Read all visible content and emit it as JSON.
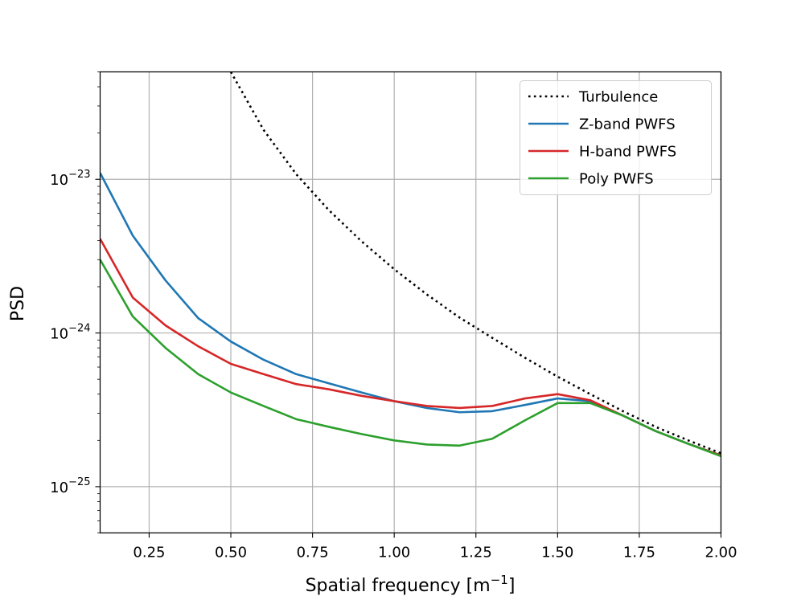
{
  "chart_data": {
    "type": "line",
    "title": "",
    "xlabel": "Spatial frequency [m",
    "xlabel_sup": "−1",
    "xlabel_end": "]",
    "ylabel": "PSD",
    "xscale": "linear",
    "yscale": "log",
    "xlim": [
      0.1,
      2.0
    ],
    "ylim": [
      5e-26,
      5e-23
    ],
    "grid": true,
    "legend_loc": "upper right",
    "xticks": [
      0.25,
      0.5,
      0.75,
      1.0,
      1.25,
      1.5,
      1.75,
      2.0
    ],
    "xtick_labels": [
      "0.25",
      "0.50",
      "0.75",
      "1.00",
      "1.25",
      "1.50",
      "1.75",
      "2.00"
    ],
    "yticks": [
      1e-25,
      1e-24,
      1e-23
    ],
    "ytick_labels": [
      {
        "base": "10",
        "exp": "−25"
      },
      {
        "base": "10",
        "exp": "−24"
      },
      {
        "base": "10",
        "exp": "−23"
      }
    ],
    "series": [
      {
        "name": "Turbulence",
        "color": "#000000",
        "style": "dotted",
        "x": [
          0.5,
          0.6,
          0.7,
          0.8,
          0.9,
          1.0,
          1.1,
          1.2,
          1.3,
          1.4,
          1.5,
          1.6,
          1.7,
          1.8,
          1.9,
          2.0
        ],
        "y": [
          5e-23,
          2.1e-23,
          1.08e-23,
          6.3e-24,
          3.95e-24,
          2.6e-24,
          1.78e-24,
          1.26e-24,
          9.3e-25,
          6.9e-25,
          5.2e-25,
          4e-25,
          3.1e-25,
          2.45e-25,
          2e-25,
          1.65e-25
        ]
      },
      {
        "name": "Z-band PWFS",
        "color": "#1f77b4",
        "style": "solid",
        "x": [
          0.1,
          0.2,
          0.3,
          0.4,
          0.5,
          0.6,
          0.7,
          0.8,
          0.9,
          1.0,
          1.1,
          1.2,
          1.3,
          1.4,
          1.5,
          1.6,
          1.7,
          1.8,
          1.9,
          2.0
        ],
        "y": [
          1.1e-23,
          4.3e-24,
          2.2e-24,
          1.25e-24,
          8.8e-25,
          6.7e-25,
          5.4e-25,
          4.7e-25,
          4.1e-25,
          3.6e-25,
          3.25e-25,
          3.05e-25,
          3.1e-25,
          3.4e-25,
          3.75e-25,
          3.6e-25,
          2.9e-25,
          2.3e-25,
          1.9e-25,
          1.6e-25
        ]
      },
      {
        "name": "H-band PWFS",
        "color": "#d62728",
        "style": "solid",
        "x": [
          0.1,
          0.2,
          0.3,
          0.4,
          0.5,
          0.6,
          0.7,
          0.8,
          0.9,
          1.0,
          1.1,
          1.2,
          1.3,
          1.4,
          1.5,
          1.6,
          1.7,
          1.8,
          1.9,
          2.0
        ],
        "y": [
          4.1e-24,
          1.7e-24,
          1.12e-24,
          8.2e-25,
          6.3e-25,
          5.4e-25,
          4.65e-25,
          4.3e-25,
          3.9e-25,
          3.6e-25,
          3.35e-25,
          3.25e-25,
          3.35e-25,
          3.75e-25,
          4e-25,
          3.65e-25,
          2.9e-25,
          2.3e-25,
          1.9e-25,
          1.6e-25
        ]
      },
      {
        "name": "Poly PWFS",
        "color": "#2ca02c",
        "style": "solid",
        "x": [
          0.1,
          0.2,
          0.3,
          0.4,
          0.5,
          0.6,
          0.7,
          0.8,
          0.9,
          1.0,
          1.1,
          1.2,
          1.3,
          1.4,
          1.5,
          1.6,
          1.7,
          1.8,
          1.9,
          2.0
        ],
        "y": [
          3e-24,
          1.28e-24,
          8e-25,
          5.4e-25,
          4.1e-25,
          3.35e-25,
          2.75e-25,
          2.45e-25,
          2.2e-25,
          2e-25,
          1.88e-25,
          1.85e-25,
          2.05e-25,
          2.7e-25,
          3.5e-25,
          3.5e-25,
          2.9e-25,
          2.3e-25,
          1.9e-25,
          1.58e-25
        ]
      }
    ]
  }
}
